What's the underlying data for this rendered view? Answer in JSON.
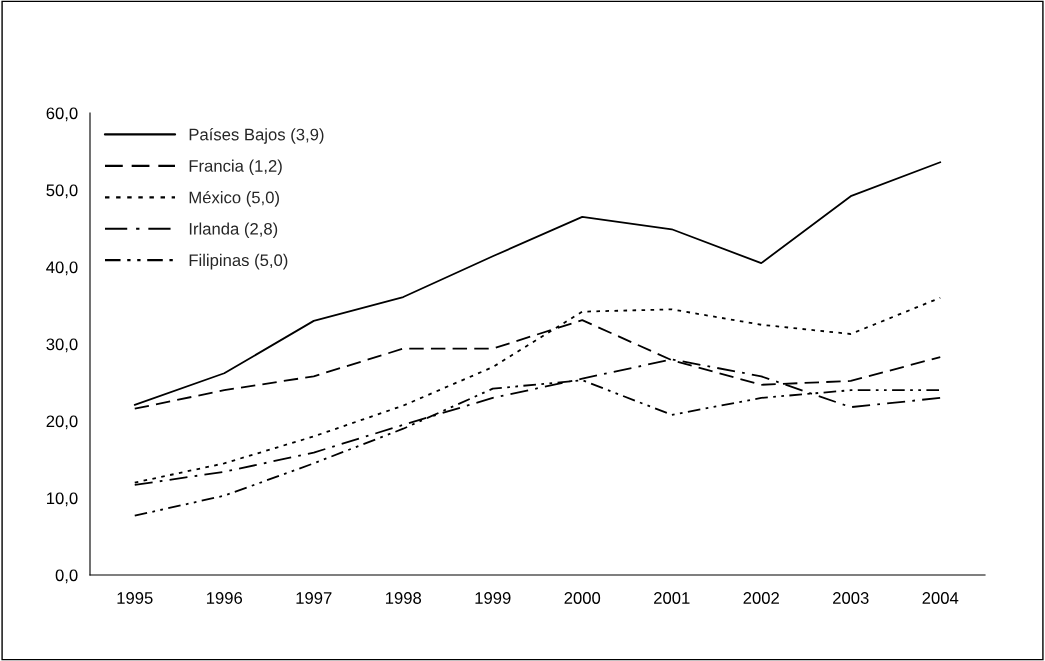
{
  "chart_data": {
    "type": "line",
    "categories": [
      "1995",
      "1996",
      "1997",
      "1998",
      "1999",
      "2000",
      "2001",
      "2002",
      "2003",
      "2004"
    ],
    "series": [
      {
        "name": "Países Bajos (3,9)",
        "color": "#000000",
        "line_style": "solid",
        "values": [
          22.1,
          26.2,
          33.0,
          36.1,
          41.4,
          46.5,
          44.9,
          40.5,
          49.2,
          53.6
        ]
      },
      {
        "name": "Francia (1,2)",
        "color": "#000000",
        "line_style": "dashed",
        "values": [
          21.6,
          24.0,
          25.8,
          29.4,
          29.4,
          33.1,
          27.9,
          24.7,
          25.2,
          28.3
        ]
      },
      {
        "name": "México (5,0)",
        "color": "#000000",
        "line_style": "dotted",
        "values": [
          12.0,
          14.5,
          18.0,
          22.0,
          27.0,
          34.2,
          34.5,
          32.5,
          31.3,
          36.0
        ]
      },
      {
        "name": "Irlanda (2,8)",
        "color": "#000000",
        "line_style": "dashdot",
        "values": [
          11.7,
          13.4,
          15.9,
          19.5,
          23.0,
          25.5,
          28.0,
          25.8,
          21.8,
          23.0
        ]
      },
      {
        "name": "Filipinas (5,0)",
        "color": "#000000",
        "line_style": "dashdotdot",
        "values": [
          7.7,
          10.3,
          14.5,
          19.0,
          24.2,
          25.3,
          20.8,
          23.0,
          24.0,
          24.0
        ]
      }
    ],
    "ylim": [
      0,
      60
    ],
    "yticks": [
      {
        "value": 0,
        "label": "0,0"
      },
      {
        "value": 10,
        "label": "10,0"
      },
      {
        "value": 20,
        "label": "20,0"
      },
      {
        "value": 30,
        "label": "30,0"
      },
      {
        "value": 40,
        "label": "40,0"
      },
      {
        "value": 50,
        "label": "50,0"
      },
      {
        "value": 60,
        "label": "60,0"
      }
    ],
    "legend": "top left",
    "grid": false,
    "marker": "none"
  }
}
